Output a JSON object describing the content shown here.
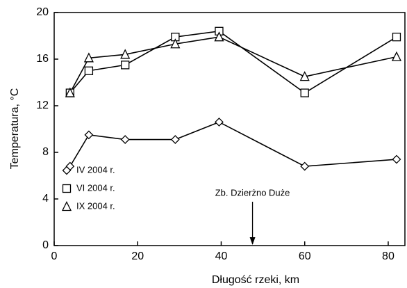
{
  "chart_data": {
    "type": "line",
    "x_label": "Długość rzeki, km",
    "y_label": "Temperatura, °C",
    "annotation": {
      "text": "Zb. Dzierżno Duże",
      "x": 47.5
    },
    "x": [
      3.8,
      8.3,
      17,
      29,
      39.5,
      60,
      82
    ],
    "series": [
      {
        "name": "IV 2004 r.",
        "color": "#000000",
        "marker": "diamond",
        "values": [
          6.8,
          9.5,
          9.1,
          9.1,
          10.6,
          6.8,
          7.4
        ]
      },
      {
        "name": "VI 2004 r.",
        "color": "#000000",
        "marker": "square",
        "values": [
          13.1,
          15.0,
          15.5,
          17.9,
          18.4,
          13.1,
          17.9
        ]
      },
      {
        "name": "IX 2004 r.",
        "color": "#000000",
        "marker": "triangle",
        "values": [
          13.1,
          16.1,
          16.4,
          17.3,
          17.9,
          14.5,
          16.2
        ]
      }
    ],
    "xlim": [
      0,
      84
    ],
    "xticks": [
      0,
      20,
      40,
      60,
      80
    ],
    "ylim": [
      0,
      20
    ],
    "yticks": [
      0,
      4,
      8,
      12,
      16,
      20
    ],
    "grid": false,
    "legend": "lower left"
  }
}
